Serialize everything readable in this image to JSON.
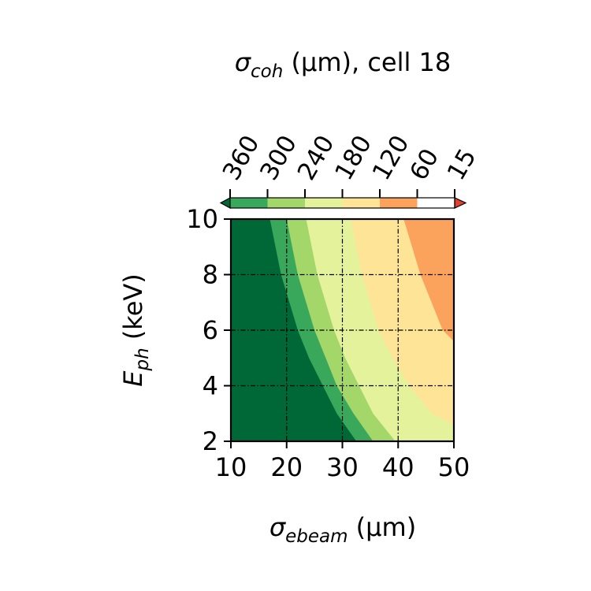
{
  "chart_data": {
    "type": "heatmap",
    "subtype": "filled-contour",
    "title": {
      "symbol": "σ",
      "symbol_sub": "coh",
      "unit": "(μm),",
      "suffix": "cell 18"
    },
    "xlabel": {
      "symbol": "σ",
      "symbol_sub": "ebeam",
      "unit": "(μm)"
    },
    "ylabel": {
      "symbol": "E",
      "symbol_sub": "ph",
      "unit": "(keV)"
    },
    "x_ticks": [
      10,
      20,
      30,
      40,
      50
    ],
    "y_ticks": [
      2,
      4,
      6,
      8,
      10
    ],
    "xlim": [
      10,
      50
    ],
    "ylim": [
      2,
      10
    ],
    "grid": true,
    "grid_style": "dash-dot",
    "colorbar": {
      "location": "top",
      "extend": "both",
      "tick_labels": [
        "360",
        "300",
        "240",
        "180",
        "120",
        "60",
        "15"
      ],
      "levels": [
        {
          "label": "> 300",
          "color": "#006837"
        },
        {
          "label": "240–300",
          "color": "#3aa85a"
        },
        {
          "label": "180–240",
          "color": "#a3d76a"
        },
        {
          "label": "120–180",
          "color": "#e3f29b"
        },
        {
          "label": "60–120",
          "color": "#fee496"
        },
        {
          "label": "15–60",
          "color": "#fba35c"
        },
        {
          "label": "< 15",
          "color": "#e2412f"
        }
      ]
    },
    "contour_boundaries": [
      {
        "between": [
          "> 300",
          "240–300"
        ],
        "points": [
          [
            32.5,
            2
          ],
          [
            29.0,
            3
          ],
          [
            26.5,
            4
          ],
          [
            24.0,
            5
          ],
          [
            22.0,
            6
          ],
          [
            20.5,
            7
          ],
          [
            19.0,
            8
          ],
          [
            18.0,
            9
          ],
          [
            17.0,
            10
          ]
        ]
      },
      {
        "between": [
          "240–300",
          "180–240"
        ],
        "points": [
          [
            35.5,
            2
          ],
          [
            32.0,
            3
          ],
          [
            29.0,
            4
          ],
          [
            27.0,
            5
          ],
          [
            25.0,
            6
          ],
          [
            23.5,
            7
          ],
          [
            22.0,
            8
          ],
          [
            21.0,
            9
          ],
          [
            20.0,
            10
          ]
        ]
      },
      {
        "between": [
          "180–240",
          "120–180"
        ],
        "points": [
          [
            39.5,
            2
          ],
          [
            35.5,
            3
          ],
          [
            33.0,
            4
          ],
          [
            30.5,
            5
          ],
          [
            28.5,
            6
          ],
          [
            27.0,
            7
          ],
          [
            25.5,
            8
          ],
          [
            24.5,
            9
          ],
          [
            23.5,
            10
          ]
        ]
      },
      {
        "between": [
          "120–180",
          "60–120"
        ],
        "points": [
          [
            50.0,
            2.6
          ],
          [
            46.0,
            3
          ],
          [
            42.0,
            4
          ],
          [
            39.0,
            5
          ],
          [
            36.5,
            6
          ],
          [
            35.0,
            7
          ],
          [
            33.5,
            8
          ],
          [
            32.5,
            9
          ],
          [
            31.5,
            10
          ]
        ]
      },
      {
        "between": [
          "60–120",
          "15–60"
        ],
        "points": [
          [
            50.0,
            5.6
          ],
          [
            48.0,
            6
          ],
          [
            46.0,
            7
          ],
          [
            44.0,
            8
          ],
          [
            42.5,
            9
          ],
          [
            41.0,
            10
          ]
        ]
      }
    ]
  }
}
